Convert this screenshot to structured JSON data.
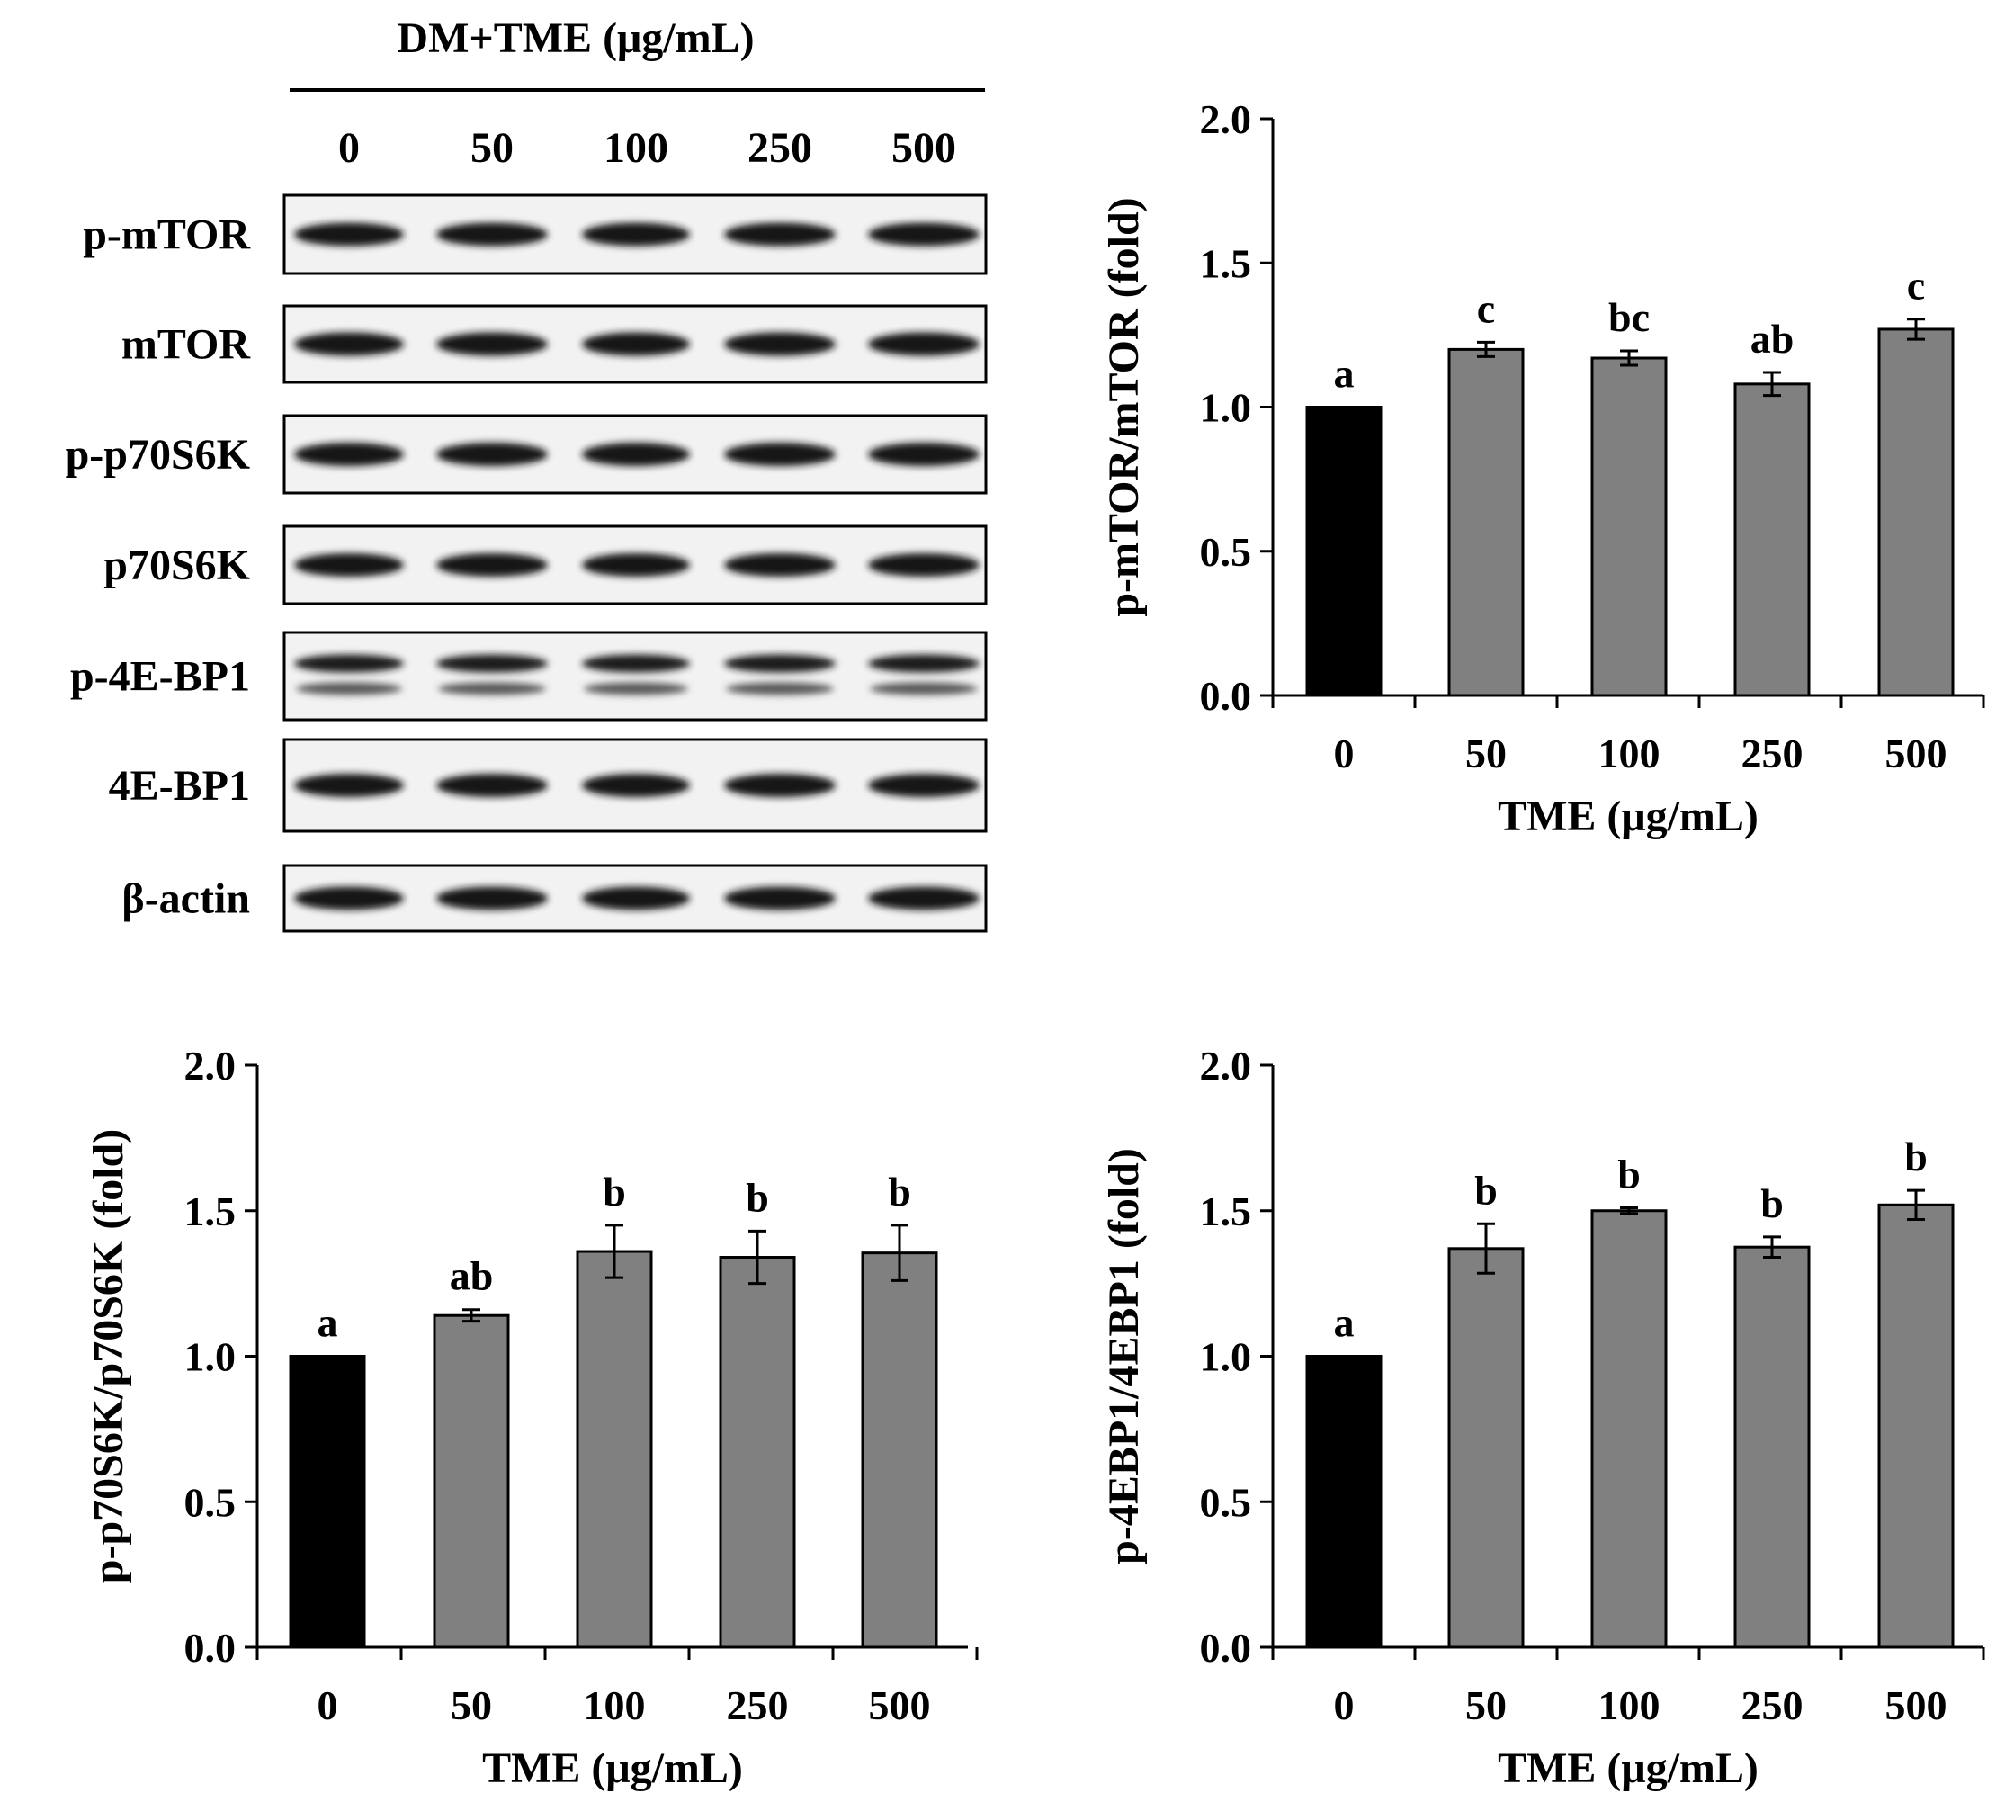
{
  "western_blot": {
    "header": "DM+TME (μg/mL)",
    "lanes": [
      "0",
      "50",
      "100",
      "250",
      "500"
    ],
    "proteins": [
      {
        "name": "p-mTOR",
        "double": false
      },
      {
        "name": "mTOR",
        "double": false
      },
      {
        "name": "p-p70S6K",
        "double": false
      },
      {
        "name": "p70S6K",
        "double": false
      },
      {
        "name": "p-4E-BP1",
        "double": true
      },
      {
        "name": "4E-BP1",
        "double": false
      },
      {
        "name": "β-actin",
        "double": false
      }
    ]
  },
  "colors": {
    "control_bar": "#000000",
    "treatment_bar": "#808080",
    "axis": "#000000"
  },
  "chart_data": [
    {
      "type": "bar",
      "ylabel": "p-mTOR/mTOR (fold)",
      "xlabel": "TME (μg/mL)",
      "categories": [
        "0",
        "50",
        "100",
        "250",
        "500"
      ],
      "values": [
        1.0,
        1.2,
        1.17,
        1.08,
        1.27
      ],
      "errors": [
        0.0,
        0.025,
        0.025,
        0.04,
        0.035
      ],
      "letters": [
        "a",
        "c",
        "bc",
        "ab",
        "c"
      ],
      "yticks": [
        "0.0",
        "0.5",
        "1.0",
        "1.5",
        "2.0"
      ],
      "ylim": [
        0,
        2
      ]
    },
    {
      "type": "bar",
      "ylabel": "p-p70S6K/p70S6K (fold)",
      "xlabel": "TME (μg/mL)",
      "categories": [
        "0",
        "50",
        "100",
        "250",
        "500"
      ],
      "values": [
        1.0,
        1.14,
        1.36,
        1.34,
        1.355
      ],
      "errors": [
        0.0,
        0.02,
        0.09,
        0.09,
        0.095
      ],
      "letters": [
        "a",
        "ab",
        "b",
        "b",
        "b"
      ],
      "yticks": [
        "0.0",
        "0.5",
        "1.0",
        "1.5",
        "2.0"
      ],
      "ylim": [
        0,
        2
      ]
    },
    {
      "type": "bar",
      "ylabel": "p-4EBP1/4EBP1 (fold)",
      "xlabel": "TME (μg/mL)",
      "categories": [
        "0",
        "50",
        "100",
        "250",
        "500"
      ],
      "values": [
        1.0,
        1.37,
        1.5,
        1.375,
        1.52
      ],
      "errors": [
        0.0,
        0.085,
        0.01,
        0.035,
        0.05
      ],
      "letters": [
        "a",
        "b",
        "b",
        "b",
        "b"
      ],
      "yticks": [
        "0.0",
        "0.5",
        "1.0",
        "1.5",
        "2.0"
      ],
      "ylim": [
        0,
        2
      ]
    }
  ]
}
